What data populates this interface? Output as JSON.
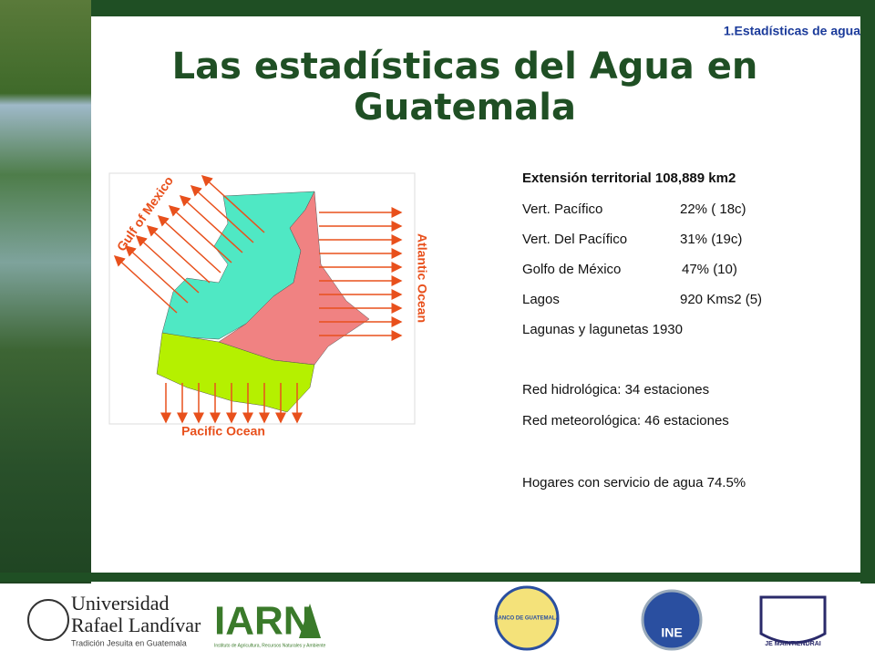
{
  "header": {
    "section": "1.Estadísticas de agua",
    "title_line1": "Las estadísticas del Agua en",
    "title_line2": "Guatemala"
  },
  "map": {
    "labels": {
      "north": "Gulf of Mexico",
      "east": "Atlantic Ocean",
      "south": "Pacific Ocean"
    }
  },
  "stats": {
    "heading": "Extensión territorial 108,889 km2",
    "rows": [
      {
        "label": "Vert. Pacífico",
        "value": "22% ( 18c)"
      },
      {
        "label": "Vert. Del Pacífico",
        "value": "31% (19c)"
      },
      {
        "label": "Golfo de México",
        "value": "47% (10)"
      },
      {
        "label": "Lagos",
        "value": "920 Kms2 (5)"
      }
    ],
    "lagunas": "Lagunas y lagunetas 1930",
    "red_hidrologica": "Red hidrológica:  34 estaciones",
    "red_meteorologica": "Red meteorológica: 46 estaciones",
    "hogares": "Hogares con servicio de agua  74.5%"
  },
  "footer": {
    "url_name": "Universidad",
    "url_name2": "Rafael Landívar",
    "url_tagline": "Tradición Jesuita en Guatemala",
    "iarna": "IARN",
    "iarna_sub": "Instituto de Agricultura, Recursos Naturales y Ambiente",
    "banguat": "BANCO DE GUATEMALA",
    "ine": "INE",
    "motto": "JE MAINTIENDRAI"
  }
}
